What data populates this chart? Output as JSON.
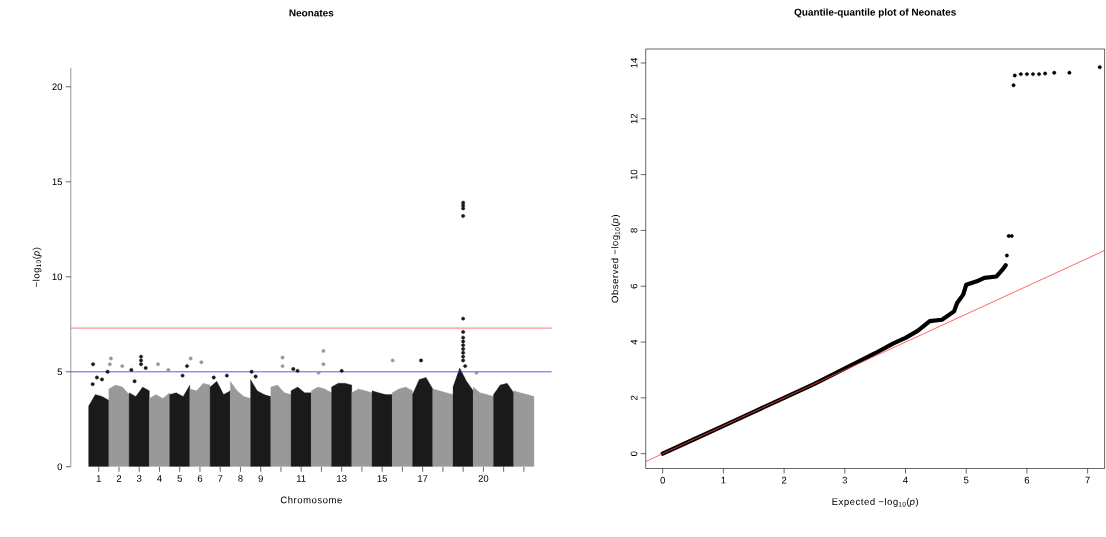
{
  "chart_data": [
    {
      "type": "scatter",
      "title": "Neonates",
      "xlabel": "Chromosome",
      "ylabel": "−log$_{10}$(*p*)",
      "xlim": [
        -0.38,
        23.38
      ],
      "ylim": [
        0,
        21
      ],
      "xticks": [
        1,
        2,
        3,
        4,
        5,
        6,
        7,
        8,
        9,
        {
          "value": 10,
          "label": null
        },
        11,
        {
          "value": 12,
          "label": null
        },
        13,
        {
          "value": 14,
          "label": null
        },
        15,
        {
          "value": 16,
          "label": null
        },
        17,
        {
          "value": 18,
          "label": null
        },
        {
          "value": 19,
          "label": null
        },
        20,
        {
          "value": 21,
          "label": null
        },
        {
          "value": 22,
          "label": null
        }
      ],
      "yticks": [
        0,
        5,
        10,
        15,
        20
      ],
      "ref_lines": [
        {
          "axis": "y",
          "value": 7.3,
          "color": "#ff5050"
        },
        {
          "axis": "y",
          "value": 5,
          "color": "#3030ff"
        }
      ],
      "series": [
        {
          "type": "area",
          "color": "#1a1a1a",
          "x": [
            0.5,
            0.83,
            1.17,
            1.5
          ],
          "values": [
            3.2,
            3.8,
            3.7,
            3.5
          ]
        },
        {
          "type": "area",
          "color": "#999999",
          "x": [
            1.5,
            1.83,
            2.17,
            2.5
          ],
          "values": [
            4.1,
            4.3,
            4.2,
            3.8
          ]
        },
        {
          "type": "area",
          "color": "#1a1a1a",
          "x": [
            2.5,
            2.83,
            3.17,
            3.5
          ],
          "values": [
            3.9,
            3.7,
            4.2,
            4.0
          ]
        },
        {
          "type": "area",
          "color": "#999999",
          "x": [
            3.5,
            3.83,
            4.17,
            4.5
          ],
          "values": [
            3.6,
            3.8,
            3.6,
            3.9
          ]
        },
        {
          "type": "area",
          "color": "#1a1a1a",
          "x": [
            4.5,
            4.83,
            5.17,
            5.5
          ],
          "values": [
            3.8,
            3.9,
            3.7,
            4.3
          ]
        },
        {
          "type": "area",
          "color": "#999999",
          "x": [
            5.5,
            5.83,
            6.17,
            6.5
          ],
          "values": [
            4.1,
            4.0,
            4.4,
            4.3
          ]
        },
        {
          "type": "area",
          "color": "#1a1a1a",
          "x": [
            6.5,
            6.83,
            7.17,
            7.5
          ],
          "values": [
            4.2,
            4.5,
            3.8,
            4.0
          ]
        },
        {
          "type": "area",
          "color": "#999999",
          "x": [
            7.5,
            7.83,
            8.17,
            8.5
          ],
          "values": [
            4.5,
            4.0,
            3.7,
            3.6
          ]
        },
        {
          "type": "area",
          "color": "#1a1a1a",
          "x": [
            8.5,
            8.83,
            9.17,
            9.5
          ],
          "values": [
            4.6,
            4.0,
            3.8,
            3.7
          ]
        },
        {
          "type": "area",
          "color": "#999999",
          "x": [
            9.5,
            9.83,
            10.17,
            10.5
          ],
          "values": [
            4.2,
            4.3,
            3.9,
            3.8
          ]
        },
        {
          "type": "area",
          "color": "#1a1a1a",
          "x": [
            10.5,
            10.83,
            11.17,
            11.5
          ],
          "values": [
            4.0,
            4.2,
            3.9,
            3.9
          ]
        },
        {
          "type": "area",
          "color": "#999999",
          "x": [
            11.5,
            11.83,
            12.17,
            12.5
          ],
          "values": [
            4.0,
            4.2,
            4.1,
            3.9
          ]
        },
        {
          "type": "area",
          "color": "#1a1a1a",
          "x": [
            12.5,
            12.83,
            13.17,
            13.5
          ],
          "values": [
            4.2,
            4.4,
            4.4,
            4.3
          ]
        },
        {
          "type": "area",
          "color": "#999999",
          "x": [
            13.5,
            13.83,
            14.17,
            14.5
          ],
          "values": [
            3.9,
            4.1,
            4.0,
            3.9
          ]
        },
        {
          "type": "area",
          "color": "#1a1a1a",
          "x": [
            14.5,
            14.83,
            15.17,
            15.5
          ],
          "values": [
            4.0,
            3.9,
            3.8,
            3.8
          ]
        },
        {
          "type": "area",
          "color": "#999999",
          "x": [
            15.5,
            15.83,
            16.17,
            16.5
          ],
          "values": [
            3.9,
            4.1,
            4.2,
            4.0
          ]
        },
        {
          "type": "area",
          "color": "#1a1a1a",
          "x": [
            16.5,
            16.83,
            17.17,
            17.5
          ],
          "values": [
            3.8,
            4.6,
            4.7,
            4.1
          ]
        },
        {
          "type": "area",
          "color": "#999999",
          "x": [
            17.5,
            17.83,
            18.17,
            18.5
          ],
          "values": [
            4.1,
            4.0,
            3.9,
            3.8
          ]
        },
        {
          "type": "area",
          "color": "#1a1a1a",
          "x": [
            18.5,
            18.83,
            19.17,
            19.5
          ],
          "values": [
            4.2,
            5.2,
            4.5,
            4.0
          ]
        },
        {
          "type": "area",
          "color": "#999999",
          "x": [
            19.5,
            19.83,
            20.17,
            20.5
          ],
          "values": [
            4.2,
            3.9,
            3.8,
            3.7
          ]
        },
        {
          "type": "area",
          "color": "#1a1a1a",
          "x": [
            20.5,
            20.83,
            21.17,
            21.5
          ],
          "values": [
            3.8,
            4.3,
            4.4,
            3.9
          ]
        },
        {
          "type": "area",
          "color": "#999999",
          "x": [
            21.5,
            21.83,
            22.17,
            22.5
          ],
          "values": [
            4.0,
            3.9,
            3.8,
            3.7
          ]
        },
        {
          "marker": "circle",
          "color": "#1a1a1a",
          "x": [
            0.72,
            0.7,
            0.91,
            1.16,
            1.44,
            2.61,
            2.77,
            3.09,
            3.09,
            3.09,
            3.32,
            5.14,
            5.36,
            6.68,
            7.33,
            8.55,
            8.75,
            10.61,
            10.82,
            13.0,
            16.92,
            19.0,
            19.0,
            19.0,
            19.0,
            19.0,
            19.0,
            19.0,
            19.0,
            19.0,
            19.0,
            19.0,
            19.0,
            19.0,
            19.1
          ],
          "values": [
            5.4,
            4.35,
            4.7,
            4.6,
            5.0,
            5.1,
            4.5,
            5.8,
            5.6,
            5.4,
            5.2,
            4.8,
            5.3,
            4.7,
            4.8,
            5.0,
            4.75,
            5.15,
            5.05,
            5.05,
            5.6,
            13.9,
            13.75,
            13.6,
            13.2,
            7.8,
            7.1,
            6.8,
            6.6,
            6.4,
            6.2,
            6.0,
            5.8,
            5.6,
            5.3
          ]
        },
        {
          "marker": "circle",
          "color": "#999999",
          "x": [
            1.55,
            1.6,
            2.16,
            3.93,
            4.44,
            5.54,
            6.07,
            10.08,
            10.08,
            11.86,
            12.1,
            12.1,
            15.52,
            19.66
          ],
          "values": [
            5.4,
            5.7,
            5.3,
            5.4,
            5.1,
            5.7,
            5.5,
            5.75,
            5.3,
            4.95,
            6.1,
            5.4,
            5.6,
            4.95
          ]
        }
      ]
    },
    {
      "type": "scatter",
      "title": "Quantile-quantile plot of Neonates",
      "xlabel": "Expected −log$_{10}$(*p*)",
      "ylabel": "Observed −log$_{10}$(*p*)",
      "xlim": [
        -0.28,
        7.28
      ],
      "ylim": [
        -0.53,
        14.5
      ],
      "xticks": [
        0,
        1,
        2,
        3,
        4,
        5,
        6,
        7
      ],
      "yticks": [
        0,
        2,
        4,
        6,
        8,
        10,
        12,
        14
      ],
      "series": [
        {
          "type": "line",
          "line_style": "solid",
          "color": "#000000",
          "x": [
            0,
            0.5,
            1,
            1.5,
            2,
            2.5,
            3,
            3.5,
            3.8,
            4,
            4.2,
            4.4,
            4.6,
            4.8,
            4.85,
            4.95,
            5,
            5.2,
            5.3,
            5.5,
            5.6,
            5.65
          ],
          "values": [
            0,
            0.5,
            1,
            1.5,
            2,
            2.5,
            3.05,
            3.6,
            3.95,
            4.15,
            4.4,
            4.75,
            4.8,
            5.1,
            5.4,
            5.7,
            6.05,
            6.2,
            6.3,
            6.35,
            6.6,
            6.75
          ]
        },
        {
          "marker": "circle",
          "color": "#000000",
          "x": [
            5.67,
            5.7,
            5.75,
            5.78,
            5.8,
            5.9,
            6.0,
            6.1,
            6.2,
            6.3,
            6.45,
            6.7,
            7.2
          ],
          "values": [
            7.1,
            7.8,
            7.8,
            13.2,
            13.55,
            13.6,
            13.6,
            13.6,
            13.6,
            13.62,
            13.65,
            13.65,
            13.85
          ]
        },
        {
          "type": "line",
          "line_style": "solid",
          "color": "#ff4040",
          "x": [
            -0.28,
            7.28
          ],
          "values": [
            -0.28,
            7.28
          ]
        }
      ]
    }
  ]
}
